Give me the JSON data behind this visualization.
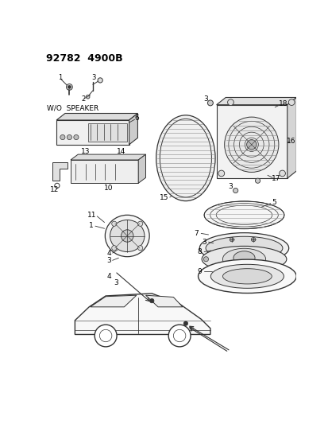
{
  "title": "92782  4900B",
  "background_color": "#ffffff",
  "line_color": "#333333",
  "text_color": "#000000",
  "fig_width": 4.14,
  "fig_height": 5.33,
  "dpi": 100
}
